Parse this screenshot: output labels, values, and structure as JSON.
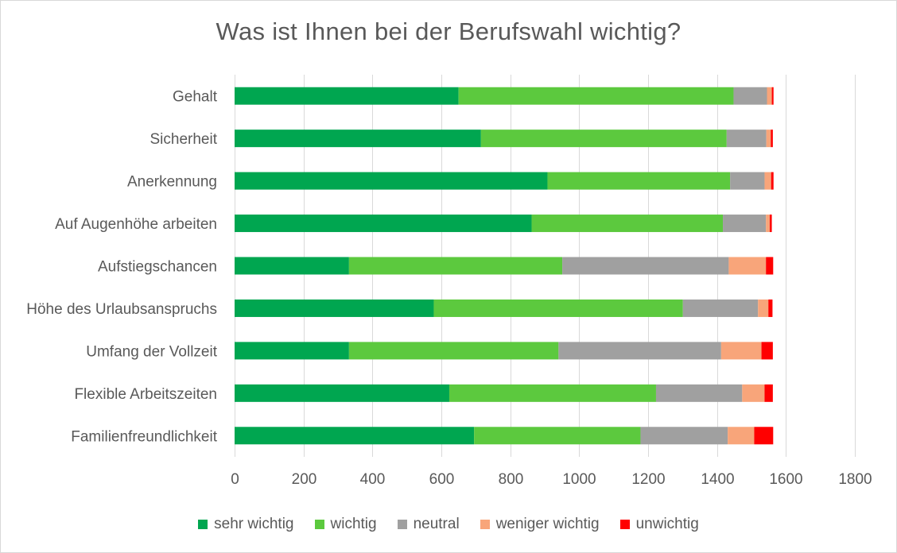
{
  "chart_data": {
    "type": "bar",
    "orientation": "horizontal",
    "stacked": true,
    "title": "Was ist Ihnen bei der Berufswahl wichtig?",
    "categories": [
      "Gehalt",
      "Sicherheit",
      "Anerkennung",
      "Auf Augenhöhe arbeiten",
      "Aufstiegschancen",
      "Höhe des Urlaubsanspruchs",
      "Umfang der Vollzeit",
      "Flexible Arbeitszeiten",
      "Familienfreundlichkeit"
    ],
    "series": [
      {
        "name": "sehr wichtig",
        "color": "#00a650",
        "values": [
          650,
          715,
          908,
          862,
          332,
          578,
          332,
          623,
          695
        ]
      },
      {
        "name": "wichtig",
        "color": "#5cc93e",
        "values": [
          798,
          713,
          530,
          555,
          619,
          723,
          608,
          600,
          483
        ]
      },
      {
        "name": "neutral",
        "color": "#a0a0a0",
        "values": [
          97,
          115,
          100,
          125,
          483,
          218,
          472,
          250,
          253
        ]
      },
      {
        "name": "weniger wichtig",
        "color": "#f8a57a",
        "values": [
          14,
          13,
          19,
          11,
          108,
          30,
          117,
          65,
          77
        ]
      },
      {
        "name": "unwichtig",
        "color": "#ff0000",
        "values": [
          5,
          6,
          7,
          6,
          21,
          12,
          33,
          24,
          55
        ]
      }
    ],
    "xlim": [
      0,
      1800
    ],
    "xticks": [
      "0",
      "200",
      "400",
      "600",
      "800",
      "1000",
      "1200",
      "1400",
      "1600",
      "1800"
    ],
    "grid": true,
    "legend_position": "bottom"
  }
}
